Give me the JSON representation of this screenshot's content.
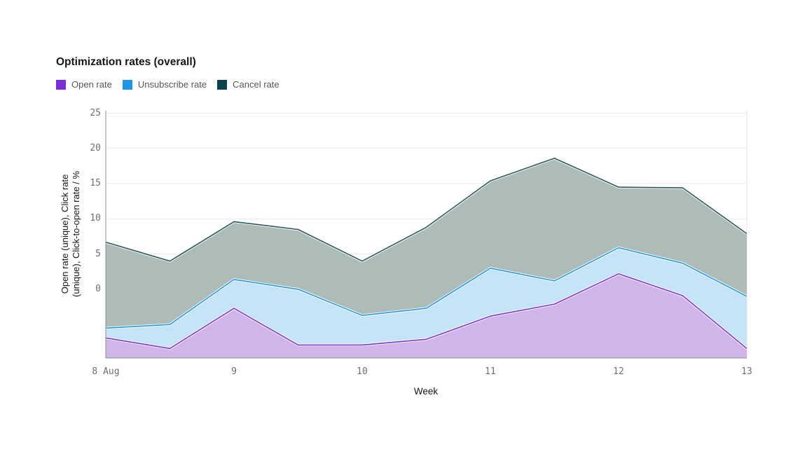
{
  "title": "Optimization rates (overall)",
  "legend": {
    "items": [
      {
        "label": "Open rate",
        "color": "#7b2fd9"
      },
      {
        "label": "Unsubscribe rate",
        "color": "#1e96e8"
      },
      {
        "label": "Cancel rate",
        "color": "#0b444d"
      }
    ]
  },
  "axes": {
    "x_title": "Week",
    "y_title_line1": "Open rate (unique), Click rate",
    "y_title_line2": "(unique), Click-to-open rate / %"
  },
  "chart_data": {
    "type": "area",
    "title": "Optimization rates (overall)",
    "xlabel": "Week",
    "ylabel": "Open rate (unique), Click rate (unique), Click-to-open rate / %",
    "grid": "horizontal",
    "legend_position": "top-left",
    "x": [
      8,
      8.5,
      9,
      9.5,
      10,
      10.5,
      11,
      11.5,
      12,
      12.5,
      13
    ],
    "x_tick_labels": [
      {
        "week": 8,
        "label": "8 Aug"
      },
      {
        "week": 9,
        "label": "9"
      },
      {
        "week": 10,
        "label": "10"
      },
      {
        "week": 11,
        "label": "11"
      },
      {
        "week": 12,
        "label": "12"
      },
      {
        "week": 13,
        "label": "13"
      }
    ],
    "y_ticks": [
      0,
      5,
      10,
      15,
      20,
      25
    ],
    "ylim": [
      -9.75,
      25.35
    ],
    "series": [
      {
        "name": "Open rate",
        "line_color": "#7a35d2",
        "fill_color": "#cfb5e9",
        "values": [
          -6.9,
          -8.4,
          -2.7,
          -7.9,
          -7.9,
          -7.1,
          -3.8,
          -2.1,
          2.2,
          -0.9,
          -8.4
        ]
      },
      {
        "name": "Unsubscribe rate",
        "line_color": "#2396e8",
        "fill_color": "#c6e4f8",
        "values": [
          -5.5,
          -5.0,
          1.4,
          0.0,
          -3.7,
          -2.7,
          3.0,
          1.2,
          5.9,
          3.7,
          -1.0
        ]
      },
      {
        "name": "Cancel rate",
        "line_color": "#2a585c",
        "fill_color": "#adbcb6",
        "values": [
          6.7,
          4.0,
          9.6,
          8.5,
          4.0,
          8.8,
          15.4,
          18.6,
          14.5,
          14.4,
          7.9
        ]
      }
    ]
  }
}
